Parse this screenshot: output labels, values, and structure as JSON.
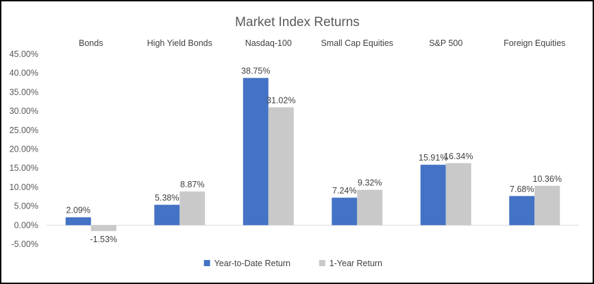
{
  "chart_data": {
    "type": "bar",
    "title": "Market Index Returns",
    "categories": [
      "Bonds",
      "High Yield Bonds",
      "Nasdaq-100",
      "Small Cap Equities",
      "S&P 500",
      "Foreign Equities"
    ],
    "series": [
      {
        "name": "Year-to-Date Return",
        "color": "#4472C4",
        "values": [
          2.09,
          5.38,
          38.75,
          7.24,
          15.91,
          7.68
        ],
        "labels": [
          "2.09%",
          "5.38%",
          "38.75%",
          "7.24%",
          "15.91%",
          "7.68%"
        ]
      },
      {
        "name": "1-Year Return",
        "color": "#C9C9C9",
        "values": [
          -1.53,
          8.87,
          31.02,
          9.32,
          16.34,
          10.36
        ],
        "labels": [
          "-1.53%",
          "8.87%",
          "31.02%",
          "9.32%",
          "16.34%",
          "10.36%"
        ]
      }
    ],
    "ylim": [
      -5,
      45
    ],
    "yticks": [
      -5,
      0,
      5,
      10,
      15,
      20,
      25,
      30,
      35,
      40,
      45
    ],
    "ytick_labels": [
      "-5.00%",
      "0.00%",
      "5.00%",
      "10.00%",
      "15.00%",
      "20.00%",
      "25.00%",
      "30.00%",
      "35.00%",
      "40.00%",
      "45.00%"
    ],
    "category_labels_position": "top",
    "grid": false,
    "legend": "bottom"
  }
}
